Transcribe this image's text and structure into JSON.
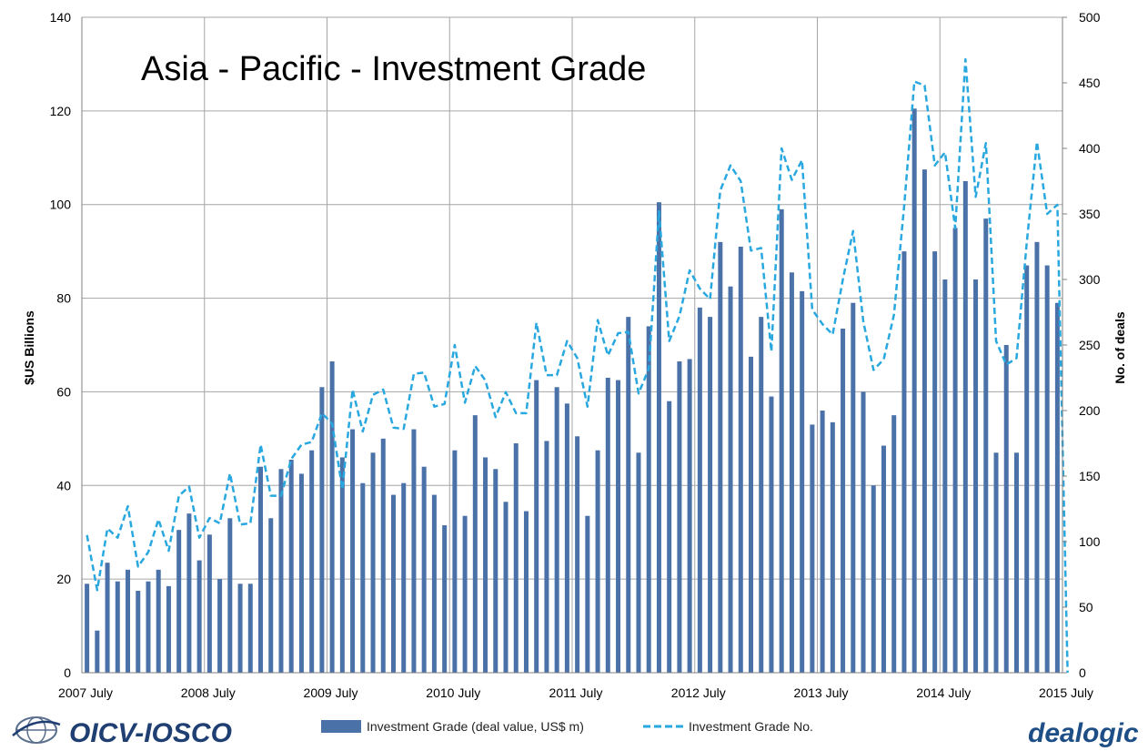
{
  "chart_data": {
    "type": "bar",
    "title": "Asia - Pacific - Investment Grade",
    "ylabel": "$US Billions",
    "y2label": "No. of deals",
    "ylim": [
      0,
      140
    ],
    "y2lim": [
      0,
      500
    ],
    "yticks": [
      0,
      20,
      40,
      60,
      80,
      100,
      120,
      140
    ],
    "y2ticks": [
      0,
      50,
      100,
      150,
      200,
      250,
      300,
      350,
      400,
      450,
      500
    ],
    "xtick_labels": [
      "2007 July",
      "2008 July",
      "2009 July",
      "2010 July",
      "2011 July",
      "2012 July",
      "2013 July",
      "2014 July",
      "2015 July"
    ],
    "grid": true,
    "legend_position": "bottom",
    "series": [
      {
        "name": "Investment Grade (deal value, US$ m)",
        "type": "bar",
        "axis": "left",
        "color": "#4a72a8",
        "values": [
          19,
          9,
          23.5,
          19.5,
          22,
          17.5,
          19.5,
          22,
          18.5,
          30.5,
          34,
          24,
          29.5,
          20,
          33,
          19,
          19,
          44,
          33,
          43.5,
          45.5,
          42.5,
          47.5,
          61,
          66.5,
          46,
          52,
          40.5,
          47,
          50,
          38,
          40.5,
          52,
          44,
          38,
          31.5,
          47.5,
          33.5,
          55,
          46,
          43.5,
          36.5,
          49,
          34.5,
          62.5,
          49.5,
          61,
          57.5,
          50.5,
          33.5,
          47.5,
          63,
          62.5,
          76,
          47,
          74,
          100.5,
          58,
          66.5,
          67,
          78,
          76,
          92,
          82.5,
          91,
          67.5,
          76,
          59,
          99,
          85.5,
          81.5,
          53,
          56,
          53.5,
          73.5,
          79,
          60,
          40,
          48.5,
          55,
          90,
          120.5,
          107.5,
          90,
          84,
          95,
          105,
          84,
          97,
          47,
          70,
          47,
          87,
          92,
          87,
          79,
          0
        ]
      },
      {
        "name": "Investment Grade No.",
        "type": "line",
        "axis": "right",
        "color": "#29a8e0",
        "values": [
          105,
          63,
          110,
          103,
          127,
          81,
          92,
          117,
          93,
          135,
          142,
          103,
          118,
          114,
          152,
          113,
          114,
          174,
          135,
          135,
          163,
          174,
          176,
          198,
          190,
          140,
          216,
          184,
          212,
          216,
          187,
          186,
          228,
          229,
          203,
          205,
          250,
          206,
          234,
          223,
          195,
          214,
          198,
          198,
          267,
          227,
          227,
          253,
          240,
          203,
          269,
          242,
          259,
          260,
          213,
          232,
          352,
          253,
          272,
          307,
          293,
          285,
          368,
          387,
          375,
          322,
          324,
          245,
          400,
          376,
          391,
          277,
          266,
          258,
          300,
          337,
          268,
          231,
          239,
          273,
          356,
          451,
          448,
          387,
          397,
          339,
          468,
          363,
          404,
          253,
          235,
          240,
          328,
          405,
          350,
          357,
          0
        ]
      }
    ]
  },
  "logos": {
    "left_text": "OICV-IOSCO",
    "right_text": "dealogic"
  },
  "colors": {
    "grid": "#a6a6a6",
    "axis": "#808080"
  }
}
